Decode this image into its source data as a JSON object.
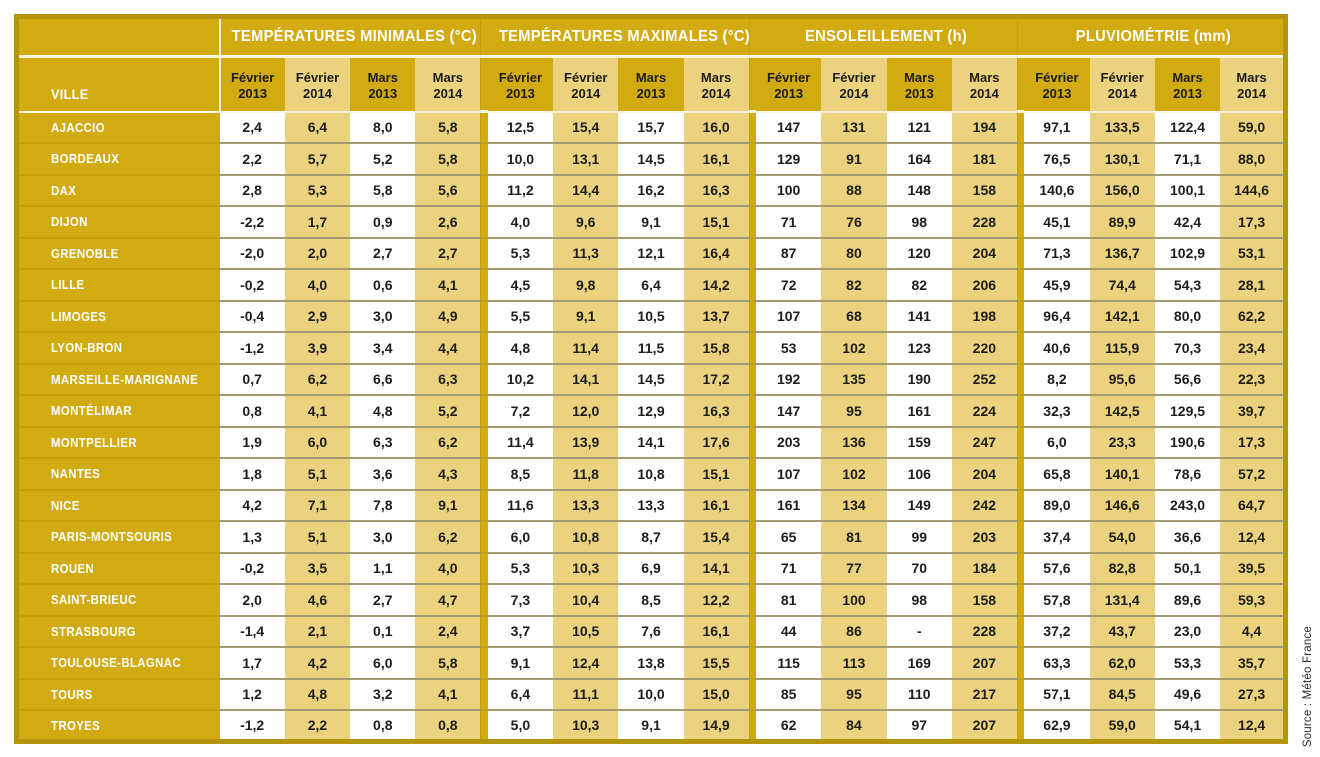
{
  "source_note": "Source : Météo France",
  "colors": {
    "gold": "#d2ab13",
    "gold_border": "#b6950e",
    "tan": "#ead27f",
    "cell_white": "#ffffff",
    "header_text": "#ffffff",
    "value_text": "#1d1d1b"
  },
  "chart_data": {
    "type": "table",
    "row_header": "VILLE",
    "groups": [
      {
        "key": "temp_min",
        "label": "TEMPÉRATURES MINIMALES (°C)"
      },
      {
        "key": "temp_max",
        "label": "TEMPÉRATURES MAXIMALES (°C)"
      },
      {
        "key": "sunshine",
        "label": "ENSOLEILLEMENT (h)"
      },
      {
        "key": "rainfall",
        "label": "PLUVIOMÉTRIE (mm)"
      }
    ],
    "periods": [
      {
        "month": "Février",
        "year": "2013"
      },
      {
        "month": "Février",
        "year": "2014"
      },
      {
        "month": "Mars",
        "year": "2013"
      },
      {
        "month": "Mars",
        "year": "2014"
      }
    ],
    "rows": [
      {
        "ville": "AJACCIO",
        "temp_min": [
          "2,4",
          "6,4",
          "8,0",
          "5,8"
        ],
        "temp_max": [
          "12,5",
          "15,4",
          "15,7",
          "16,0"
        ],
        "sunshine": [
          "147",
          "131",
          "121",
          "194"
        ],
        "rainfall": [
          "97,1",
          "133,5",
          "122,4",
          "59,0"
        ]
      },
      {
        "ville": "BORDEAUX",
        "temp_min": [
          "2,2",
          "5,7",
          "5,2",
          "5,8"
        ],
        "temp_max": [
          "10,0",
          "13,1",
          "14,5",
          "16,1"
        ],
        "sunshine": [
          "129",
          "91",
          "164",
          "181"
        ],
        "rainfall": [
          "76,5",
          "130,1",
          "71,1",
          "88,0"
        ]
      },
      {
        "ville": "DAX",
        "temp_min": [
          "2,8",
          "5,3",
          "5,8",
          "5,6"
        ],
        "temp_max": [
          "11,2",
          "14,4",
          "16,2",
          "16,3"
        ],
        "sunshine": [
          "100",
          "88",
          "148",
          "158"
        ],
        "rainfall": [
          "140,6",
          "156,0",
          "100,1",
          "144,6"
        ]
      },
      {
        "ville": "DIJON",
        "temp_min": [
          "-2,2",
          "1,7",
          "0,9",
          "2,6"
        ],
        "temp_max": [
          "4,0",
          "9,6",
          "9,1",
          "15,1"
        ],
        "sunshine": [
          "71",
          "76",
          "98",
          "228"
        ],
        "rainfall": [
          "45,1",
          "89,9",
          "42,4",
          "17,3"
        ]
      },
      {
        "ville": "GRENOBLE",
        "temp_min": [
          "-2,0",
          "2,0",
          "2,7",
          "2,7"
        ],
        "temp_max": [
          "5,3",
          "11,3",
          "12,1",
          "16,4"
        ],
        "sunshine": [
          "87",
          "80",
          "120",
          "204"
        ],
        "rainfall": [
          "71,3",
          "136,7",
          "102,9",
          "53,1"
        ]
      },
      {
        "ville": "LILLE",
        "temp_min": [
          "-0,2",
          "4,0",
          "0,6",
          "4,1"
        ],
        "temp_max": [
          "4,5",
          "9,8",
          "6,4",
          "14,2"
        ],
        "sunshine": [
          "72",
          "82",
          "82",
          "206"
        ],
        "rainfall": [
          "45,9",
          "74,4",
          "54,3",
          "28,1"
        ]
      },
      {
        "ville": "LIMOGES",
        "temp_min": [
          "-0,4",
          "2,9",
          "3,0",
          "4,9"
        ],
        "temp_max": [
          "5,5",
          "9,1",
          "10,5",
          "13,7"
        ],
        "sunshine": [
          "107",
          "68",
          "141",
          "198"
        ],
        "rainfall": [
          "96,4",
          "142,1",
          "80,0",
          "62,2"
        ]
      },
      {
        "ville": "LYON-BRON",
        "temp_min": [
          "-1,2",
          "3,9",
          "3,4",
          "4,4"
        ],
        "temp_max": [
          "4,8",
          "11,4",
          "11,5",
          "15,8"
        ],
        "sunshine": [
          "53",
          "102",
          "123",
          "220"
        ],
        "rainfall": [
          "40,6",
          "115,9",
          "70,3",
          "23,4"
        ]
      },
      {
        "ville": "MARSEILLE-MARIGNANE",
        "temp_min": [
          "0,7",
          "6,2",
          "6,6",
          "6,3"
        ],
        "temp_max": [
          "10,2",
          "14,1",
          "14,5",
          "17,2"
        ],
        "sunshine": [
          "192",
          "135",
          "190",
          "252"
        ],
        "rainfall": [
          "8,2",
          "95,6",
          "56,6",
          "22,3"
        ]
      },
      {
        "ville": "MONTÉLIMAR",
        "temp_min": [
          "0,8",
          "4,1",
          "4,8",
          "5,2"
        ],
        "temp_max": [
          "7,2",
          "12,0",
          "12,9",
          "16,3"
        ],
        "sunshine": [
          "147",
          "95",
          "161",
          "224"
        ],
        "rainfall": [
          "32,3",
          "142,5",
          "129,5",
          "39,7"
        ]
      },
      {
        "ville": "MONTPELLIER",
        "temp_min": [
          "1,9",
          "6,0",
          "6,3",
          "6,2"
        ],
        "temp_max": [
          "11,4",
          "13,9",
          "14,1",
          "17,6"
        ],
        "sunshine": [
          "203",
          "136",
          "159",
          "247"
        ],
        "rainfall": [
          "6,0",
          "23,3",
          "190,6",
          "17,3"
        ]
      },
      {
        "ville": "NANTES",
        "temp_min": [
          "1,8",
          "5,1",
          "3,6",
          "4,3"
        ],
        "temp_max": [
          "8,5",
          "11,8",
          "10,8",
          "15,1"
        ],
        "sunshine": [
          "107",
          "102",
          "106",
          "204"
        ],
        "rainfall": [
          "65,8",
          "140,1",
          "78,6",
          "57,2"
        ]
      },
      {
        "ville": "NICE",
        "temp_min": [
          "4,2",
          "7,1",
          "7,8",
          "9,1"
        ],
        "temp_max": [
          "11,6",
          "13,3",
          "13,3",
          "16,1"
        ],
        "sunshine": [
          "161",
          "134",
          "149",
          "242"
        ],
        "rainfall": [
          "89,0",
          "146,6",
          "243,0",
          "64,7"
        ]
      },
      {
        "ville": "PARIS-MONTSOURIS",
        "temp_min": [
          "1,3",
          "5,1",
          "3,0",
          "6,2"
        ],
        "temp_max": [
          "6,0",
          "10,8",
          "8,7",
          "15,4"
        ],
        "sunshine": [
          "65",
          "81",
          "99",
          "203"
        ],
        "rainfall": [
          "37,4",
          "54,0",
          "36,6",
          "12,4"
        ]
      },
      {
        "ville": "ROUEN",
        "temp_min": [
          "-0,2",
          "3,5",
          "1,1",
          "4,0"
        ],
        "temp_max": [
          "5,3",
          "10,3",
          "6,9",
          "14,1"
        ],
        "sunshine": [
          "71",
          "77",
          "70",
          "184"
        ],
        "rainfall": [
          "57,6",
          "82,8",
          "50,1",
          "39,5"
        ]
      },
      {
        "ville": "SAINT-BRIEUC",
        "temp_min": [
          "2,0",
          "4,6",
          "2,7",
          "4,7"
        ],
        "temp_max": [
          "7,3",
          "10,4",
          "8,5",
          "12,2"
        ],
        "sunshine": [
          "81",
          "100",
          "98",
          "158"
        ],
        "rainfall": [
          "57,8",
          "131,4",
          "89,6",
          "59,3"
        ]
      },
      {
        "ville": "STRASBOURG",
        "temp_min": [
          "-1,4",
          "2,1",
          "0,1",
          "2,4"
        ],
        "temp_max": [
          "3,7",
          "10,5",
          "7,6",
          "16,1"
        ],
        "sunshine": [
          "44",
          "86",
          "-",
          "228"
        ],
        "rainfall": [
          "37,2",
          "43,7",
          "23,0",
          "4,4"
        ]
      },
      {
        "ville": "TOULOUSE-BLAGNAC",
        "temp_min": [
          "1,7",
          "4,2",
          "6,0",
          "5,8"
        ],
        "temp_max": [
          "9,1",
          "12,4",
          "13,8",
          "15,5"
        ],
        "sunshine": [
          "115",
          "113",
          "169",
          "207"
        ],
        "rainfall": [
          "63,3",
          "62,0",
          "53,3",
          "35,7"
        ]
      },
      {
        "ville": "TOURS",
        "temp_min": [
          "1,2",
          "4,8",
          "3,2",
          "4,1"
        ],
        "temp_max": [
          "6,4",
          "11,1",
          "10,0",
          "15,0"
        ],
        "sunshine": [
          "85",
          "95",
          "110",
          "217"
        ],
        "rainfall": [
          "57,1",
          "84,5",
          "49,6",
          "27,3"
        ]
      },
      {
        "ville": "TROYES",
        "temp_min": [
          "-1,2",
          "2,2",
          "0,8",
          "0,8"
        ],
        "temp_max": [
          "5,0",
          "10,3",
          "9,1",
          "14,9"
        ],
        "sunshine": [
          "62",
          "84",
          "97",
          "207"
        ],
        "rainfall": [
          "62,9",
          "59,0",
          "54,1",
          "12,4"
        ]
      }
    ]
  }
}
